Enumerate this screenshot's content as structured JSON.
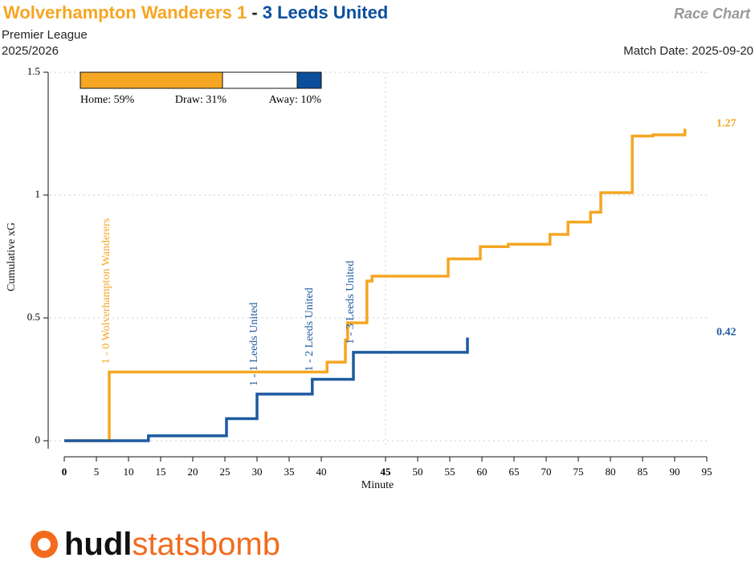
{
  "chart_data": {
    "type": "step",
    "title": {
      "home": "Wolverhampton Wanderers 1",
      "separator": "-",
      "away": "3 Leeds United"
    },
    "chart_label": "Race Chart",
    "competition": "Premier League",
    "season": "2025/2026",
    "match_date": "Match Date: 2025-09-20",
    "x_label": "Minute",
    "y_label": "Cumulative xG",
    "xlim": [
      0,
      100
    ],
    "xticks": [
      0,
      5,
      10,
      15,
      20,
      25,
      30,
      35,
      40,
      {
        "value": 50,
        "label": "45"
      },
      {
        "value": 55,
        "label": "50"
      },
      {
        "value": 60,
        "label": "55"
      },
      {
        "value": 65,
        "label": "60"
      },
      {
        "value": 70,
        "label": "65"
      },
      {
        "value": 75,
        "label": "70"
      },
      {
        "value": 80,
        "label": "75"
      },
      {
        "value": 85,
        "label": "80"
      },
      {
        "value": 90,
        "label": "85"
      },
      {
        "value": 95,
        "label": "90"
      },
      {
        "value": 100,
        "label": "95"
      }
    ],
    "half_time": 50,
    "ylim": [
      0,
      1.5
    ],
    "yticks": [
      0,
      0.5,
      1,
      1.5
    ],
    "grid": true,
    "series": [
      {
        "name": "Wolverhampton Wanderers",
        "color": "#f5a623",
        "x": [
          0,
          7,
          40.9,
          43.75,
          44.1,
          47.1,
          47.9,
          59.75,
          64.75,
          69.1,
          75.6,
          78.4,
          81.9,
          83.5,
          88.4,
          91.6,
          96.6
        ],
        "values": [
          0,
          0.28,
          0.32,
          0.41,
          0.48,
          0.65,
          0.67,
          0.74,
          0.79,
          0.8,
          0.84,
          0.89,
          0.93,
          1.01,
          1.24,
          1.245,
          1.27
        ],
        "final_label": "1.27"
      },
      {
        "name": "Leeds United",
        "color": "#1e5aa0",
        "x": [
          0,
          13.1,
          25.25,
          30,
          38.6,
          45,
          62.75
        ],
        "values": [
          0,
          0.02,
          0.09,
          0.19,
          0.25,
          0.36,
          0.42
        ],
        "final_label": "0.42"
      }
    ],
    "goals": [
      {
        "x": 7,
        "series": 0,
        "label": "1 - 0 Wolverhampton Wanderers"
      },
      {
        "x": 30,
        "series": 1,
        "label": "1 - 1 Leeds United"
      },
      {
        "x": 38.6,
        "series": 1,
        "label": "1 - 2 Leeds United"
      },
      {
        "x": 45,
        "series": 1,
        "label": "1 - 3 Leeds United"
      }
    ],
    "probabilities": {
      "values": [
        59,
        31,
        10
      ],
      "value_labels": [
        "Home: 59%",
        "Draw: 31%",
        "Away: 10%"
      ],
      "colors": [
        "#f5a623",
        "#ffffff",
        "#0b4f9c"
      ]
    },
    "logo": [
      "hudl",
      "statsbomb"
    ]
  }
}
